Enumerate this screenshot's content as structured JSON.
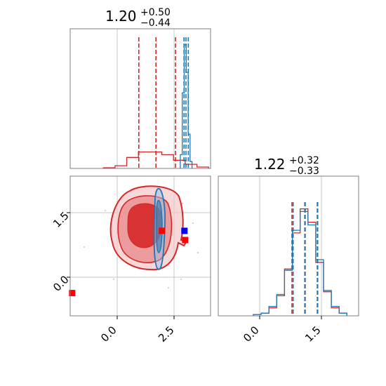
{
  "colors": {
    "red": "#d62728",
    "blue": "#1f77b4",
    "marker_red": "#ff0000",
    "marker_blue": "#0000ff"
  },
  "chart_data": [
    {
      "type": "histogram",
      "panel": "top-left marginal",
      "title": {
        "value": "1.20",
        "plus": "+0.50",
        "minus": "−0.44"
      },
      "xlim": [
        -1.0,
        2.6
      ],
      "grid": true,
      "gridlines_x": [
        0.0,
        1.3
      ],
      "series": [
        {
          "color": "red",
          "bin_centers": [
            0.0,
            0.3,
            0.6,
            0.9,
            1.2,
            1.5,
            1.8,
            2.1,
            2.4
          ],
          "heights": [
            0.005,
            0.02,
            0.08,
            0.12,
            0.12,
            0.1,
            0.06,
            0.03,
            0.01
          ],
          "quantile_lines": [
            0.76,
            1.2,
            1.7
          ]
        },
        {
          "color": "blue",
          "bin_centers": [
            1.85,
            1.9,
            1.95,
            2.0,
            2.05,
            2.1
          ],
          "heights": [
            0.1,
            0.55,
            0.9,
            0.7,
            0.25,
            0.05
          ],
          "quantile_lines": [
            1.92,
            1.97,
            2.03
          ]
        }
      ]
    },
    {
      "type": "scatter",
      "panel": "bottom-left 2d",
      "xlim": [
        -1.0,
        2.6
      ],
      "ylim": [
        -0.9,
        2.6
      ],
      "xticks": [
        "0.0",
        "2.5"
      ],
      "yticks": [
        "0.0",
        "1.5"
      ],
      "grid": true,
      "gridlines_x": [
        0.0,
        1.3
      ],
      "gridlines_y": [
        0.0,
        1.5
      ],
      "red_contours_levels": 3,
      "blue_contour": true,
      "markers": [
        {
          "x": 1.35,
          "y": 1.23,
          "color": "marker_red"
        },
        {
          "x": 1.93,
          "y": 1.23,
          "color": "marker_blue"
        },
        {
          "x": 1.95,
          "y": 1.0,
          "color": "marker_red"
        },
        {
          "x": -0.95,
          "y": -0.33,
          "color": "marker_red"
        }
      ]
    },
    {
      "type": "histogram",
      "panel": "bottom-right marginal",
      "title": {
        "value": "1.22",
        "plus": "+0.32",
        "minus": "−0.33"
      },
      "xlim": [
        -1.0,
        2.6
      ],
      "xticks": [
        "0.0",
        "1.5"
      ],
      "grid": true,
      "gridlines_x": [
        0.0,
        1.5
      ],
      "series": [
        {
          "color": "red",
          "bin_centers": [
            0.0,
            0.2,
            0.4,
            0.6,
            0.8,
            1.0,
            1.2,
            1.4,
            1.6,
            1.8,
            2.0,
            2.2
          ],
          "heights": [
            0.01,
            0.02,
            0.06,
            0.15,
            0.35,
            0.62,
            0.8,
            0.7,
            0.4,
            0.18,
            0.06,
            0.02
          ],
          "quantile_lines": [
            0.89,
            1.22,
            1.54
          ]
        },
        {
          "color": "blue",
          "bin_centers": [
            0.0,
            0.2,
            0.4,
            0.6,
            0.8,
            1.0,
            1.2,
            1.4,
            1.6,
            1.8,
            2.0,
            2.2
          ],
          "heights": [
            0.01,
            0.02,
            0.07,
            0.16,
            0.34,
            0.64,
            0.78,
            0.68,
            0.42,
            0.19,
            0.07,
            0.02
          ],
          "quantile_lines": [
            0.92,
            1.23,
            1.55
          ]
        }
      ]
    }
  ]
}
